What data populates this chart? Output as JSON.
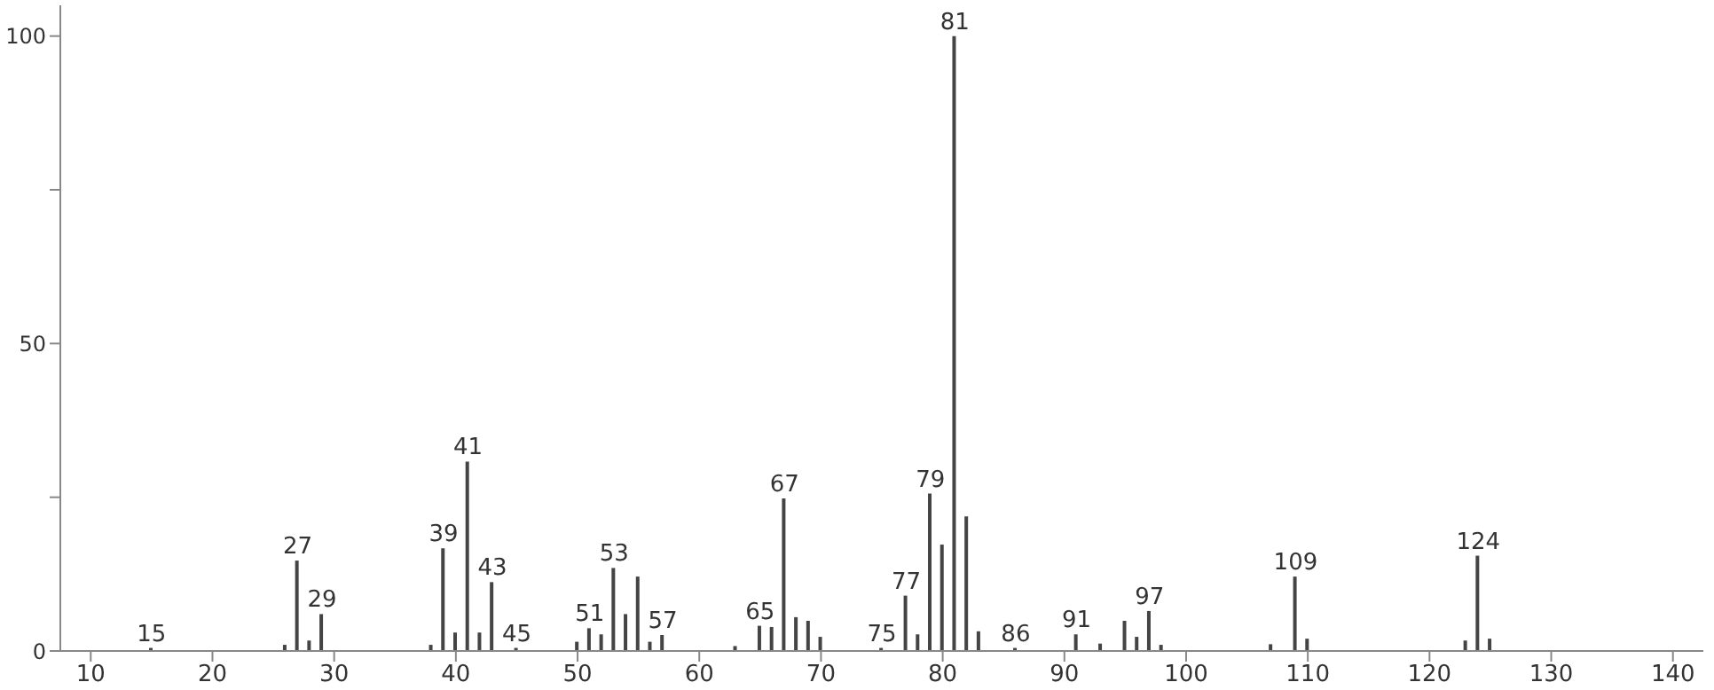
{
  "chart_data": {
    "type": "bar",
    "x": [
      15,
      26,
      27,
      28,
      29,
      38,
      39,
      40,
      41,
      42,
      43,
      45,
      50,
      51,
      52,
      53,
      54,
      55,
      56,
      57,
      63,
      65,
      66,
      67,
      68,
      69,
      70,
      75,
      77,
      78,
      79,
      80,
      81,
      82,
      83,
      86,
      91,
      93,
      95,
      96,
      97,
      98,
      107,
      109,
      110,
      123,
      124,
      125
    ],
    "values": [
      0.5,
      1,
      14.7,
      1.7,
      6,
      1,
      16.7,
      3,
      30.8,
      3,
      11.2,
      0.5,
      1.5,
      3.7,
      2.7,
      13.5,
      6,
      12.1,
      1.5,
      2.6,
      0.8,
      4.1,
      3.9,
      24.8,
      5.5,
      4.9,
      2.3,
      0.5,
      9,
      2.7,
      25.6,
      17.3,
      100,
      21.9,
      3.2,
      0.5,
      2.7,
      1.2,
      4.9,
      2.3,
      6.5,
      1,
      1.1,
      12.1,
      2,
      1.7,
      15.5,
      2
    ],
    "annotations": [
      {
        "text": "15",
        "x": 15,
        "y": 0.5
      },
      {
        "text": "27",
        "x": 27,
        "y": 14.7
      },
      {
        "text": "29",
        "x": 29,
        "y": 6
      },
      {
        "text": "39",
        "x": 39,
        "y": 16.7
      },
      {
        "text": "41",
        "x": 41,
        "y": 30.8
      },
      {
        "text": "43",
        "x": 43,
        "y": 11.2
      },
      {
        "text": "45",
        "x": 45,
        "y": 0.5
      },
      {
        "text": "51",
        "x": 51,
        "y": 3.7
      },
      {
        "text": "53",
        "x": 53,
        "y": 13.5
      },
      {
        "text": "57",
        "x": 57,
        "y": 2.6
      },
      {
        "text": "65",
        "x": 65,
        "y": 4.1
      },
      {
        "text": "67",
        "x": 67,
        "y": 24.8
      },
      {
        "text": "75",
        "x": 75,
        "y": 0.5
      },
      {
        "text": "77",
        "x": 77,
        "y": 9
      },
      {
        "text": "79",
        "x": 79,
        "y": 25.6
      },
      {
        "text": "81",
        "x": 81,
        "y": 100
      },
      {
        "text": "86",
        "x": 86,
        "y": 0.5
      },
      {
        "text": "91",
        "x": 91,
        "y": 2.7
      },
      {
        "text": "97",
        "x": 97,
        "y": 6.5
      },
      {
        "text": "109",
        "x": 109,
        "y": 12.1
      },
      {
        "text": "124",
        "x": 124,
        "y": 15.5
      }
    ],
    "color": "#444444",
    "xlim": [
      7.5,
      142.5
    ],
    "xticks": [
      10,
      20,
      30,
      40,
      50,
      60,
      70,
      80,
      90,
      100,
      110,
      120,
      130,
      140
    ],
    "ylim": [
      0,
      105
    ],
    "yticks": [
      0,
      {
        "value": 25,
        "label": null
      },
      50,
      {
        "value": 75,
        "label": null
      },
      100
    ],
    "grid": false,
    "legend": false
  }
}
